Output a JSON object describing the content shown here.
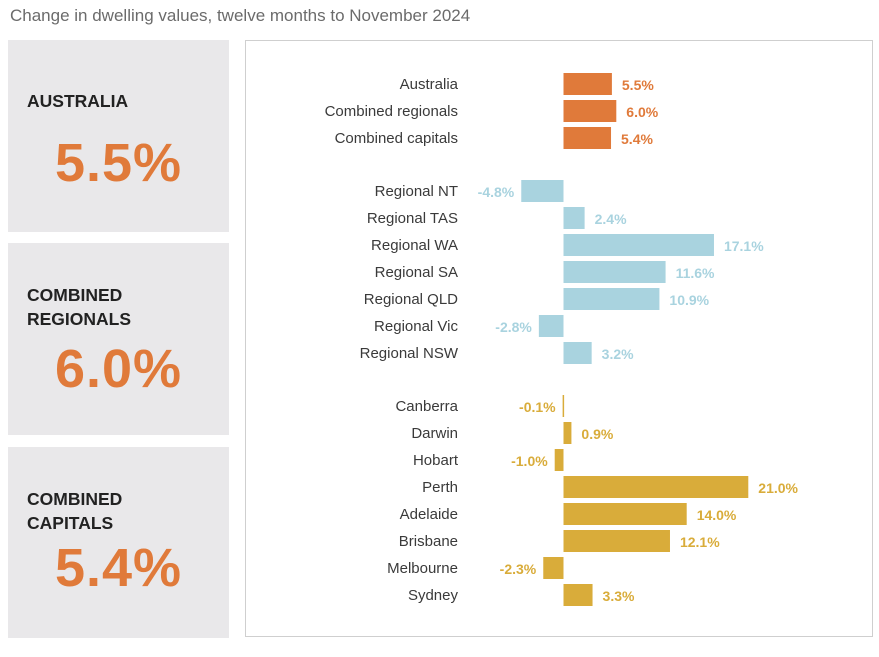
{
  "title": "Change in dwelling values, twelve months to November 2024",
  "kpis": [
    {
      "label": "AUSTRALIA",
      "value": "5.5%"
    },
    {
      "label": "COMBINED\nREGIONALS",
      "value": "6.0%"
    },
    {
      "label": "COMBINED\nCAPITALS",
      "value": "5.4%"
    }
  ],
  "colors": {
    "headline": "#e07a3a",
    "regional": "#a9d3df",
    "capital": "#d9ac3a",
    "panel": "#e9e8ea"
  },
  "chart_data": {
    "type": "bar",
    "orientation": "horizontal",
    "xlim": [
      -5,
      22
    ],
    "groups": [
      {
        "color": "#e07a3a",
        "categories": [
          "Australia",
          "Combined regionals",
          "Combined capitals"
        ],
        "values": [
          5.5,
          6.0,
          5.4
        ],
        "labels": [
          "5.5%",
          "6.0%",
          "5.4%"
        ]
      },
      {
        "color": "#a9d3df",
        "categories": [
          "Regional NT",
          "Regional TAS",
          "Regional WA",
          "Regional SA",
          "Regional QLD",
          "Regional Vic",
          "Regional NSW"
        ],
        "values": [
          -4.8,
          2.4,
          17.1,
          11.6,
          10.9,
          -2.8,
          3.2
        ],
        "labels": [
          "-4.8%",
          "2.4%",
          "17.1%",
          "11.6%",
          "10.9%",
          "-2.8%",
          "3.2%"
        ]
      },
      {
        "color": "#d9ac3a",
        "categories": [
          "Canberra",
          "Darwin",
          "Hobart",
          "Perth",
          "Adelaide",
          "Brisbane",
          "Melbourne",
          "Sydney"
        ],
        "values": [
          -0.1,
          0.9,
          -1.0,
          21.0,
          14.0,
          12.1,
          -2.3,
          3.3
        ],
        "labels": [
          "-0.1%",
          "0.9%",
          "-1.0%",
          "21.0%",
          "14.0%",
          "12.1%",
          "-2.3%",
          "3.3%"
        ]
      }
    ]
  }
}
